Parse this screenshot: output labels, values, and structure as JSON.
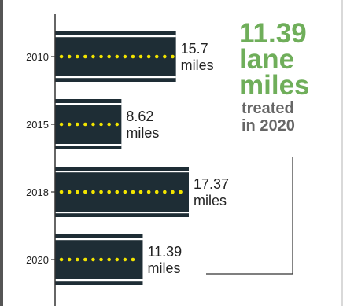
{
  "chart_data": {
    "type": "bar",
    "orientation": "horizontal",
    "categories": [
      "2010",
      "2015",
      "2018",
      "2020"
    ],
    "values": [
      15.7,
      8.62,
      17.37,
      11.39
    ],
    "value_labels": [
      "15.7",
      "8.62",
      "17.37",
      "11.39"
    ],
    "unit_label": "miles",
    "title": "",
    "xlabel": "",
    "ylabel": "",
    "xlim": [
      0,
      17.37
    ],
    "grid": false,
    "legend": "none"
  },
  "callout": {
    "line1": "11.39",
    "line2": "lane",
    "line3": "miles",
    "line4": "treated",
    "line5": "in 2020"
  },
  "colors": {
    "road": "#1e2d35",
    "lane_dots": "#f2e400",
    "edge_lines": "#ffffff",
    "axis": "#333333",
    "callout_green": "#6fae5a",
    "callout_gray": "#666666"
  }
}
